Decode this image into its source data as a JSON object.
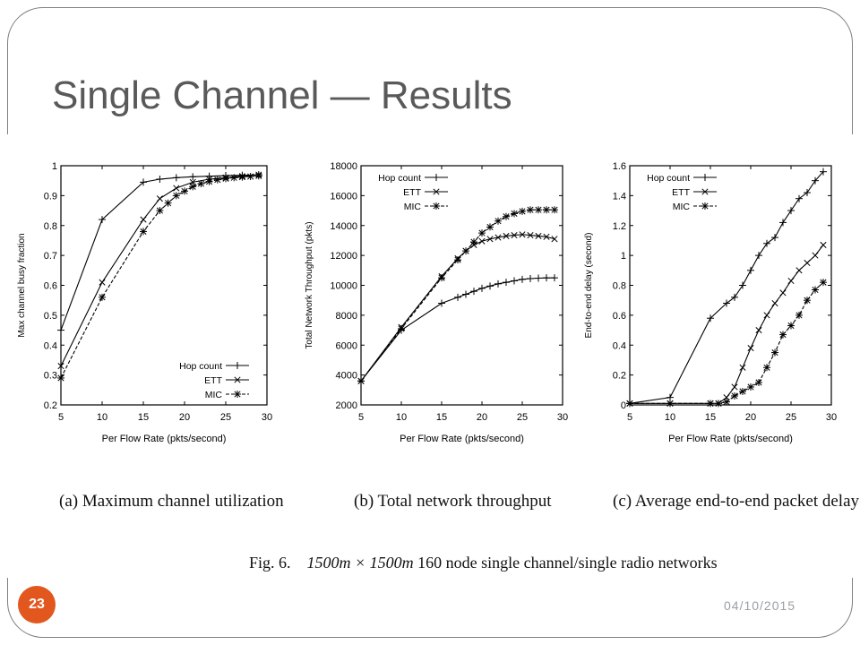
{
  "slide": {
    "title": "Single Channel — Results",
    "page_number": "23",
    "date": "04/10/2015",
    "figure_caption": {
      "label": "Fig. 6.",
      "size": "1500m × 1500m",
      "text": "160 node single channel/single radio networks"
    }
  },
  "chart_data": [
    {
      "type": "line",
      "caption": "(a) Maximum channel utilization",
      "xlabel": "Per Flow Rate (pkts/second)",
      "ylabel": "Max channel busy fraction",
      "xlim": [
        5,
        30
      ],
      "ylim": [
        0.2,
        1
      ],
      "xticks": [
        5,
        10,
        15,
        20,
        25,
        30
      ],
      "yticks": [
        0.2,
        0.3,
        0.4,
        0.5,
        0.6,
        0.7,
        0.8,
        0.9,
        1
      ],
      "ytick_labels": [
        "0.2",
        "0.3",
        "0.4",
        "0.5",
        "0.6",
        "0.7",
        "0.8",
        "0.9",
        "1"
      ],
      "legend_position": "bottom-right",
      "series": [
        {
          "name": "Hop count",
          "marker": "plus",
          "x": [
            5,
            10,
            15,
            17,
            19,
            21,
            23,
            25,
            27,
            29
          ],
          "y": [
            0.45,
            0.82,
            0.945,
            0.955,
            0.96,
            0.963,
            0.965,
            0.967,
            0.968,
            0.97
          ]
        },
        {
          "name": "ETT",
          "marker": "x",
          "x": [
            5,
            10,
            15,
            17,
            19,
            21,
            23,
            25,
            27,
            29
          ],
          "y": [
            0.33,
            0.61,
            0.82,
            0.89,
            0.925,
            0.945,
            0.955,
            0.96,
            0.965,
            0.97
          ]
        },
        {
          "name": "MIC",
          "marker": "star",
          "x": [
            5,
            10,
            15,
            17,
            18,
            19,
            20,
            21,
            22,
            23,
            24,
            25,
            26,
            27,
            28,
            29
          ],
          "y": [
            0.29,
            0.56,
            0.78,
            0.85,
            0.875,
            0.9,
            0.915,
            0.93,
            0.94,
            0.947,
            0.953,
            0.957,
            0.96,
            0.962,
            0.964,
            0.966
          ]
        }
      ]
    },
    {
      "type": "line",
      "caption": "(b) Total network throughput",
      "xlabel": "Per Flow Rate (pkts/second)",
      "ylabel": "Total Network Throughput (pkts)",
      "xlim": [
        5,
        30
      ],
      "ylim": [
        2000,
        18000
      ],
      "xticks": [
        5,
        10,
        15,
        20,
        25,
        30
      ],
      "yticks": [
        2000,
        4000,
        6000,
        8000,
        10000,
        12000,
        14000,
        16000,
        18000
      ],
      "ytick_labels": [
        "2000",
        "4000",
        "6000",
        "8000",
        "10000",
        "12000",
        "14000",
        "16000",
        "18000"
      ],
      "legend_position": "top-left",
      "series": [
        {
          "name": "Hop count",
          "marker": "plus",
          "x": [
            5,
            10,
            15,
            17,
            18,
            19,
            20,
            21,
            22,
            23,
            24,
            25,
            26,
            27,
            28,
            29
          ],
          "y": [
            3600,
            7000,
            8800,
            9200,
            9400,
            9600,
            9800,
            9950,
            10100,
            10200,
            10300,
            10400,
            10450,
            10480,
            10500,
            10500
          ]
        },
        {
          "name": "ETT",
          "marker": "x",
          "x": [
            5,
            10,
            15,
            17,
            18,
            19,
            20,
            21,
            22,
            23,
            24,
            25,
            26,
            27,
            28,
            29
          ],
          "y": [
            3600,
            7200,
            10600,
            11800,
            12300,
            12700,
            12950,
            13100,
            13200,
            13300,
            13350,
            13400,
            13350,
            13300,
            13250,
            13100
          ]
        },
        {
          "name": "MIC",
          "marker": "star",
          "x": [
            5,
            10,
            15,
            17,
            18,
            19,
            20,
            21,
            22,
            23,
            24,
            25,
            26,
            27,
            28,
            29
          ],
          "y": [
            3600,
            7100,
            10500,
            11700,
            12300,
            12900,
            13500,
            13900,
            14300,
            14600,
            14800,
            14950,
            15050,
            15050,
            15050,
            15050
          ]
        }
      ]
    },
    {
      "type": "line",
      "caption": "(c) Average end-to-end packet delay",
      "xlabel": "Per Flow Rate (pkts/second)",
      "ylabel": "End-to-end delay (second)",
      "xlim": [
        5,
        30
      ],
      "ylim": [
        0,
        1.6
      ],
      "xticks": [
        5,
        10,
        15,
        20,
        25,
        30
      ],
      "yticks": [
        0,
        0.2,
        0.4,
        0.6,
        0.8,
        1,
        1.2,
        1.4,
        1.6
      ],
      "ytick_labels": [
        "0",
        "0.2",
        "0.4",
        "0.6",
        "0.8",
        "1",
        "1.2",
        "1.4",
        "1.6"
      ],
      "legend_position": "top-left",
      "series": [
        {
          "name": "Hop count",
          "marker": "plus",
          "x": [
            5,
            10,
            15,
            17,
            18,
            19,
            20,
            21,
            22,
            23,
            24,
            25,
            26,
            27,
            28,
            29
          ],
          "y": [
            0.01,
            0.05,
            0.58,
            0.68,
            0.72,
            0.8,
            0.9,
            1.0,
            1.08,
            1.12,
            1.22,
            1.3,
            1.38,
            1.42,
            1.5,
            1.56
          ]
        },
        {
          "name": "ETT",
          "marker": "x",
          "x": [
            5,
            10,
            15,
            16,
            17,
            18,
            19,
            20,
            21,
            22,
            23,
            24,
            25,
            26,
            27,
            28,
            29
          ],
          "y": [
            0.01,
            0.01,
            0.01,
            0.01,
            0.05,
            0.12,
            0.25,
            0.38,
            0.5,
            0.6,
            0.68,
            0.75,
            0.83,
            0.9,
            0.95,
            1.0,
            1.07
          ]
        },
        {
          "name": "MIC",
          "marker": "star",
          "x": [
            5,
            10,
            15,
            16,
            17,
            18,
            19,
            20,
            21,
            22,
            23,
            24,
            25,
            26,
            27,
            28,
            29
          ],
          "y": [
            0.01,
            0.01,
            0.01,
            0.01,
            0.02,
            0.06,
            0.09,
            0.12,
            0.15,
            0.25,
            0.35,
            0.47,
            0.53,
            0.6,
            0.7,
            0.77,
            0.82
          ]
        }
      ]
    }
  ]
}
